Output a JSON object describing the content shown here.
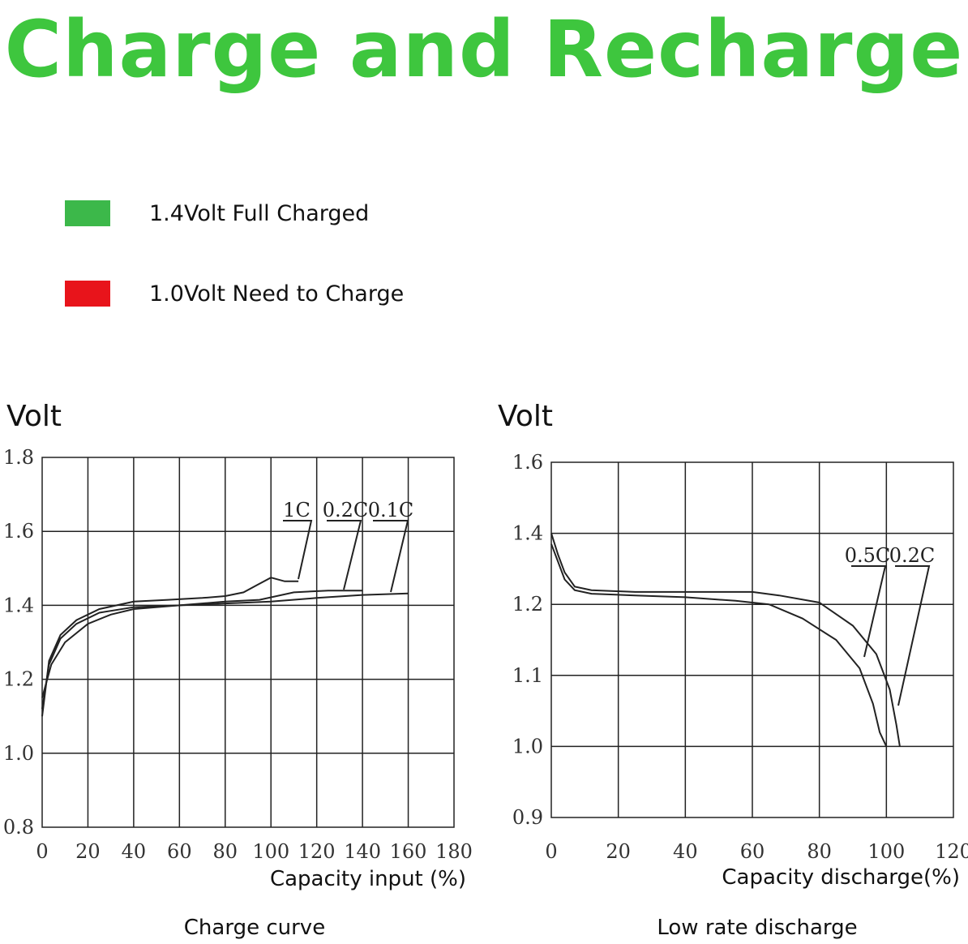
{
  "headline": "Charge and Recharge",
  "legend": [
    {
      "label": "1.4Volt Full Charged",
      "color": "#3cb84a"
    },
    {
      "label": "1.0Volt Need to Charge",
      "color": "#e8141b"
    }
  ],
  "chart_data": [
    {
      "type": "line",
      "caption": "Charge curve",
      "ylabel": "Volt",
      "xlabel": "Capacity input (%)",
      "xlim": [
        0,
        180
      ],
      "xticks": [
        "0",
        "20",
        "40",
        "60",
        "80",
        "100",
        "120",
        "140",
        "160",
        "180"
      ],
      "yticks": [
        "1.8",
        "1.6",
        "1.4",
        "1.2",
        "1.0",
        "0.8"
      ],
      "ygrid": [
        1.8,
        1.6,
        1.4,
        1.2,
        1.0,
        0.8
      ],
      "grid": true,
      "series": [
        {
          "name": "1C",
          "points": [
            [
              0,
              1.1
            ],
            [
              3,
              1.25
            ],
            [
              8,
              1.32
            ],
            [
              15,
              1.36
            ],
            [
              25,
              1.39
            ],
            [
              40,
              1.41
            ],
            [
              55,
              1.415
            ],
            [
              70,
              1.42
            ],
            [
              80,
              1.425
            ],
            [
              88,
              1.435
            ],
            [
              94,
              1.455
            ],
            [
              100,
              1.475
            ],
            [
              106,
              1.465
            ],
            [
              112,
              1.465
            ]
          ]
        },
        {
          "name": "0.2C",
          "points": [
            [
              0,
              1.12
            ],
            [
              3,
              1.24
            ],
            [
              8,
              1.31
            ],
            [
              15,
              1.35
            ],
            [
              25,
              1.38
            ],
            [
              40,
              1.395
            ],
            [
              60,
              1.4
            ],
            [
              80,
              1.41
            ],
            [
              95,
              1.415
            ],
            [
              110,
              1.435
            ],
            [
              125,
              1.44
            ],
            [
              140,
              1.44
            ]
          ]
        },
        {
          "name": "0.1C",
          "points": [
            [
              0,
              1.15
            ],
            [
              4,
              1.24
            ],
            [
              10,
              1.3
            ],
            [
              20,
              1.35
            ],
            [
              30,
              1.375
            ],
            [
              40,
              1.39
            ],
            [
              60,
              1.4
            ],
            [
              80,
              1.405
            ],
            [
              100,
              1.41
            ],
            [
              120,
              1.42
            ],
            [
              140,
              1.428
            ],
            [
              160,
              1.432
            ]
          ]
        }
      ]
    },
    {
      "type": "line",
      "caption": "Low rate discharge",
      "ylabel": "Volt",
      "xlabel": "Capacity discharge(%)",
      "xlim": [
        0,
        120
      ],
      "xticks": [
        "0",
        "20",
        "40",
        "60",
        "80",
        "100",
        "120"
      ],
      "yticks": [
        "1.6",
        "1.4",
        "1.2",
        "1.1",
        "1.0",
        "0.9"
      ],
      "ygrid": [
        1.6,
        1.4,
        1.2,
        1.1,
        1.0,
        0.9
      ],
      "grid": true,
      "series": [
        {
          "name": "0.5C",
          "points": [
            [
              0,
              1.37
            ],
            [
              2,
              1.32
            ],
            [
              4,
              1.27
            ],
            [
              7,
              1.24
            ],
            [
              12,
              1.23
            ],
            [
              25,
              1.225
            ],
            [
              40,
              1.22
            ],
            [
              55,
              1.21
            ],
            [
              65,
              1.2
            ],
            [
              75,
              1.18
            ],
            [
              85,
              1.15
            ],
            [
              92,
              1.11
            ],
            [
              96,
              1.06
            ],
            [
              98,
              1.02
            ],
            [
              100,
              1.0
            ]
          ]
        },
        {
          "name": "0.2C",
          "points": [
            [
              0,
              1.4
            ],
            [
              2,
              1.34
            ],
            [
              4,
              1.29
            ],
            [
              7,
              1.25
            ],
            [
              12,
              1.24
            ],
            [
              25,
              1.235
            ],
            [
              40,
              1.235
            ],
            [
              60,
              1.235
            ],
            [
              68,
              1.225
            ],
            [
              80,
              1.205
            ],
            [
              90,
              1.17
            ],
            [
              97,
              1.13
            ],
            [
              101,
              1.08
            ],
            [
              103,
              1.03
            ],
            [
              104,
              1.0
            ]
          ]
        }
      ]
    }
  ]
}
